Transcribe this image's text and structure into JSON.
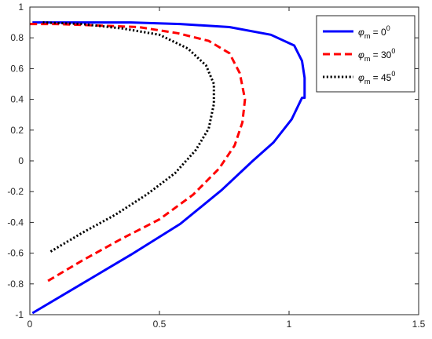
{
  "chart_data": {
    "type": "line",
    "title": "",
    "xlabel": "",
    "ylabel": "",
    "xlim": [
      0,
      1.5
    ],
    "ylim": [
      -1,
      1
    ],
    "xticks": [
      "0",
      "0.5",
      "1",
      "1.5"
    ],
    "yticks": [
      "-1",
      "-0.8",
      "-0.6",
      "-0.4",
      "-0.2",
      "0",
      "0.2",
      "0.4",
      "0.6",
      "0.8",
      "1"
    ],
    "grid": false,
    "legend_position": "top-right",
    "series": [
      {
        "name": "φm = 0°",
        "legend_symbol": "φ",
        "legend_sub": "m",
        "legend_eq": " = 0",
        "legend_sup": "0",
        "color": "#0000ff",
        "style": "solid",
        "x": [
          0.01,
          0.2,
          0.39,
          0.58,
          0.74,
          0.86,
          0.94,
          1.01,
          1.05,
          1.06,
          1.06,
          1.05,
          1.02,
          0.93,
          0.77,
          0.58,
          0.39,
          0.2,
          0.01
        ],
        "y": [
          -0.99,
          -0.8,
          -0.61,
          -0.41,
          -0.19,
          0.0,
          0.12,
          0.27,
          0.41,
          0.41,
          0.54,
          0.65,
          0.75,
          0.82,
          0.87,
          0.89,
          0.9,
          0.9,
          0.9
        ]
      },
      {
        "name": "φm = 30°",
        "legend_symbol": "φ",
        "legend_sub": "m",
        "legend_eq": " = 30",
        "legend_sup": "0",
        "color": "#ff0000",
        "style": "dashed",
        "x": [
          0.07,
          0.2,
          0.35,
          0.5,
          0.63,
          0.73,
          0.79,
          0.82,
          0.83,
          0.81,
          0.77,
          0.69,
          0.57,
          0.42,
          0.26,
          0.1,
          0.0
        ],
        "y": [
          -0.78,
          -0.65,
          -0.51,
          -0.38,
          -0.22,
          -0.05,
          0.1,
          0.25,
          0.4,
          0.57,
          0.7,
          0.78,
          0.83,
          0.87,
          0.88,
          0.89,
          0.89
        ]
      },
      {
        "name": "φm = 45°",
        "legend_symbol": "φ",
        "legend_sub": "m",
        "legend_eq": " = 45",
        "legend_sup": "0",
        "color": "#000000",
        "style": "dotted",
        "x": [
          0.08,
          0.2,
          0.33,
          0.45,
          0.56,
          0.64,
          0.69,
          0.71,
          0.71,
          0.68,
          0.61,
          0.5,
          0.36,
          0.2,
          0.05
        ],
        "y": [
          -0.59,
          -0.47,
          -0.35,
          -0.22,
          -0.08,
          0.07,
          0.21,
          0.37,
          0.5,
          0.62,
          0.73,
          0.82,
          0.86,
          0.89,
          0.9
        ]
      }
    ]
  }
}
